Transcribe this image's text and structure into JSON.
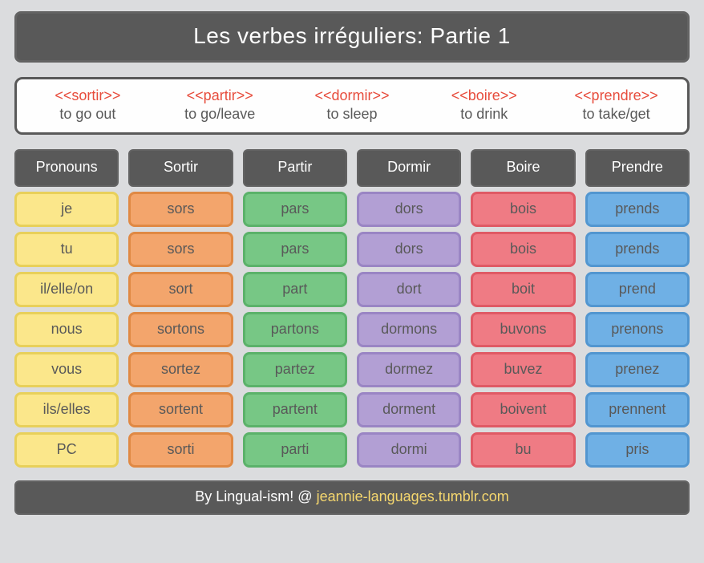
{
  "title": "Les verbes irréguliers: Partie 1",
  "legend": [
    {
      "verb": "<<sortir>>",
      "gloss": "to go out"
    },
    {
      "verb": "<<partir>>",
      "gloss": "to go/leave"
    },
    {
      "verb": "<<dormir>>",
      "gloss": "to sleep"
    },
    {
      "verb": "<<boire>>",
      "gloss": "to drink"
    },
    {
      "verb": "<<prendre>>",
      "gloss": "to take/get"
    }
  ],
  "columns": [
    {
      "header": "Pronouns",
      "fill": "#fbe78b",
      "border": "#e8d05a"
    },
    {
      "header": "Sortir",
      "fill": "#f3a56c",
      "border": "#e08944"
    },
    {
      "header": "Partir",
      "fill": "#77c785",
      "border": "#5bb26a"
    },
    {
      "header": "Dormir",
      "fill": "#b29fd4",
      "border": "#9a85c4"
    },
    {
      "header": "Boire",
      "fill": "#ef7b84",
      "border": "#e05a65"
    },
    {
      "header": "Prendre",
      "fill": "#6fb0e5",
      "border": "#5296d0"
    }
  ],
  "rows": [
    [
      "je",
      "sors",
      "pars",
      "dors",
      "bois",
      "prends"
    ],
    [
      "tu",
      "sors",
      "pars",
      "dors",
      "bois",
      "prends"
    ],
    [
      "il/elle/on",
      "sort",
      "part",
      "dort",
      "boit",
      "prend"
    ],
    [
      "nous",
      "sortons",
      "partons",
      "dormons",
      "buvons",
      "prenons"
    ],
    [
      "vous",
      "sortez",
      "partez",
      "dormez",
      "buvez",
      "prenez"
    ],
    [
      "ils/elles",
      "sortent",
      "partent",
      "dorment",
      "boivent",
      "prennent"
    ],
    [
      "PC",
      "sorti",
      "parti",
      "dormi",
      "bu",
      "pris"
    ]
  ],
  "footer_prefix": "By Lingual-ism! @ ",
  "footer_link": "jeannie-languages.tumblr.com",
  "background_color": "#dbdcde",
  "header_bg": "#595959",
  "header_fg": "#fefefe",
  "legend_verb_color": "#e74c3c",
  "footer_link_color": "#f5d76e",
  "typography": {
    "title_fontsize": 28,
    "body_fontsize": 18,
    "font_family": "Comic Sans MS"
  }
}
